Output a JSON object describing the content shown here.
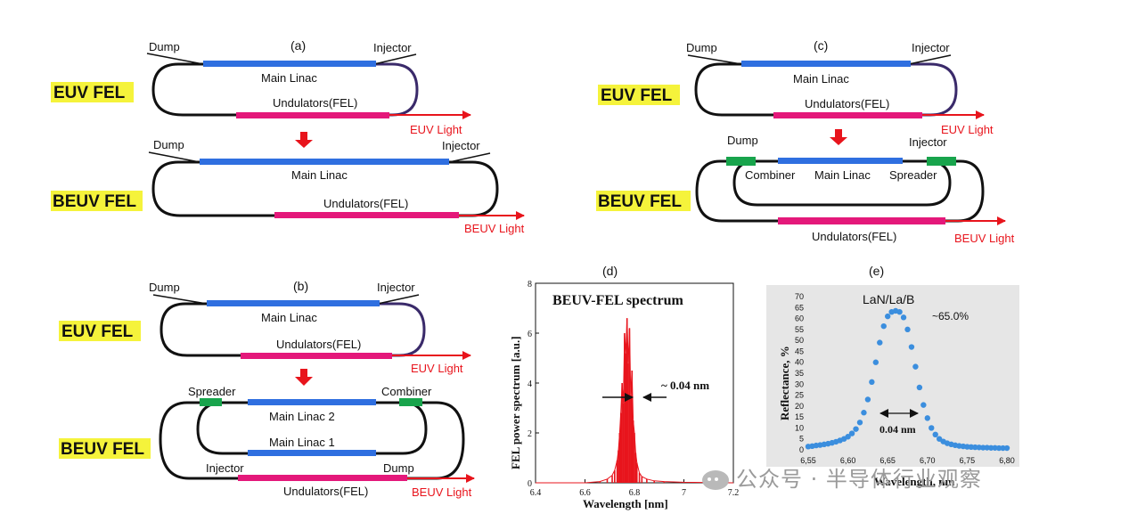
{
  "panels": {
    "a": {
      "label": "(a)",
      "euv": {
        "tag": "EUV FEL",
        "dump": "Dump",
        "injector": "Injector",
        "linac": "Main Linac",
        "undulator": "Undulators(FEL)",
        "light": "EUV Light"
      },
      "beuv": {
        "tag": "BEUV FEL",
        "dump": "Dump",
        "injector": "Injector",
        "linac": "Main Linac",
        "undulator": "Undulators(FEL)",
        "light": "BEUV Light"
      }
    },
    "b": {
      "label": "(b)",
      "euv": {
        "tag": "EUV FEL",
        "dump": "Dump",
        "injector": "Injector",
        "linac": "Main Linac",
        "undulator": "Undulators(FEL)",
        "light": "EUV Light"
      },
      "beuv": {
        "tag": "BEUV FEL",
        "spreader": "Spreader",
        "combiner": "Combiner",
        "linac2": "Main Linac 2",
        "linac1": "Main Linac 1",
        "injector": "Injector",
        "dump": "Dump",
        "undulator": "Undulators(FEL)",
        "light": "BEUV Light"
      }
    },
    "c": {
      "label": "(c)",
      "euv": {
        "tag": "EUV FEL",
        "dump": "Dump",
        "injector": "Injector",
        "linac": "Main Linac",
        "undulator": "Undulators(FEL)",
        "light": "EUV Light"
      },
      "beuv": {
        "tag": "BEUV FEL",
        "dump": "Dump",
        "injector": "Injector",
        "combiner": "Combiner",
        "linac": "Main Linac",
        "spreader": "Spreader",
        "undulator": "Undulators(FEL)",
        "light": "BEUV Light"
      }
    },
    "d": {
      "label": "(d)",
      "title": "BEUV-FEL spectrum",
      "ylabel": "FEL power spectrum [a.u.]",
      "xlabel": "Wavelength [nm]",
      "annotation": "~ 0.04 nm",
      "xticks": [
        "6.4",
        "6.6",
        "6.8",
        "7",
        "7.2"
      ],
      "yticks": [
        "0",
        "2",
        "4",
        "6",
        "8"
      ]
    },
    "e": {
      "label": "(e)",
      "title": "LaN/La/B",
      "ylabel": "Reflectance, %",
      "xlabel": "Wavelength, nm",
      "peak_label": "~65.0%",
      "annotation": "0.04 nm",
      "xticks": [
        "6,55",
        "6,60",
        "6,65",
        "6,70",
        "6,75",
        "6,80"
      ],
      "yticks": [
        "0",
        "5",
        "10",
        "15",
        "20",
        "25",
        "30",
        "35",
        "40",
        "45",
        "50",
        "55",
        "60",
        "65",
        "70"
      ]
    }
  },
  "chart_data": [
    {
      "type": "line",
      "panel": "d",
      "title": "BEUV-FEL spectrum",
      "xlabel": "Wavelength [nm]",
      "ylabel": "FEL power spectrum [a.u.]",
      "xlim": [
        6.4,
        7.2
      ],
      "ylim": [
        0,
        8
      ],
      "color": "#e8141c",
      "series": [
        {
          "x": [
            6.4,
            6.6,
            6.66,
            6.69,
            6.71,
            6.72,
            6.73,
            6.735,
            6.74,
            6.745,
            6.75,
            6.755,
            6.76,
            6.765,
            6.77,
            6.775,
            6.78,
            6.785,
            6.79,
            6.795,
            6.8,
            6.805,
            6.81,
            6.82,
            6.83,
            6.85,
            6.88,
            6.92,
            7.0,
            7.2
          ],
          "y": [
            0,
            0,
            0.05,
            0.15,
            0.3,
            0.5,
            0.9,
            1.3,
            2.0,
            2.8,
            4.0,
            3.2,
            6.0,
            5.2,
            6.6,
            4.8,
            6.2,
            3.5,
            4.5,
            2.5,
            2.0,
            1.2,
            0.8,
            0.4,
            0.25,
            0.15,
            0.08,
            0.05,
            0.02,
            0
          ]
        }
      ]
    },
    {
      "type": "scatter",
      "panel": "e",
      "title": "LaN/La/B",
      "xlabel": "Wavelength, nm",
      "ylabel": "Reflectance, %",
      "xlim": [
        6.55,
        6.8
      ],
      "ylim": [
        0,
        70
      ],
      "color": "#3b8ede",
      "series": [
        {
          "x": [
            6.55,
            6.555,
            6.56,
            6.565,
            6.57,
            6.575,
            6.58,
            6.585,
            6.59,
            6.595,
            6.6,
            6.605,
            6.61,
            6.615,
            6.62,
            6.625,
            6.63,
            6.635,
            6.64,
            6.645,
            6.65,
            6.655,
            6.66,
            6.665,
            6.67,
            6.675,
            6.68,
            6.685,
            6.69,
            6.695,
            6.7,
            6.705,
            6.71,
            6.715,
            6.72,
            6.725,
            6.73,
            6.735,
            6.74,
            6.745,
            6.75,
            6.755,
            6.76,
            6.765,
            6.77,
            6.775,
            6.78,
            6.785,
            6.79,
            6.795,
            6.8
          ],
          "y": [
            1.5,
            1.7,
            2.0,
            2.2,
            2.5,
            2.8,
            3.2,
            3.7,
            4.3,
            5.0,
            6.0,
            7.5,
            9.5,
            12.5,
            17.0,
            23.0,
            31.0,
            40.0,
            49.0,
            56.5,
            61.0,
            63.0,
            63.5,
            63.0,
            60.5,
            55.0,
            47.0,
            38.0,
            28.5,
            20.5,
            14.5,
            10.0,
            7.0,
            5.0,
            3.8,
            3.0,
            2.5,
            2.1,
            1.8,
            1.6,
            1.4,
            1.3,
            1.2,
            1.1,
            1.0,
            1.0,
            0.9,
            0.9,
            0.8,
            0.8,
            0.8
          ]
        }
      ]
    }
  ],
  "watermark": {
    "text": "公众号 · 半导体行业观察"
  },
  "colors": {
    "linac": "#2f6fe0",
    "undulator": "#e4187a",
    "spreader": "#18a44c",
    "loop": "#111111",
    "injector_loop": "#3a2a6a",
    "arrow": "#e8141c",
    "tag_bg": "#f5f33b",
    "spectrum": "#e8141c",
    "dots": "#3b8ede",
    "refl_bg": "#e6e6e6"
  }
}
